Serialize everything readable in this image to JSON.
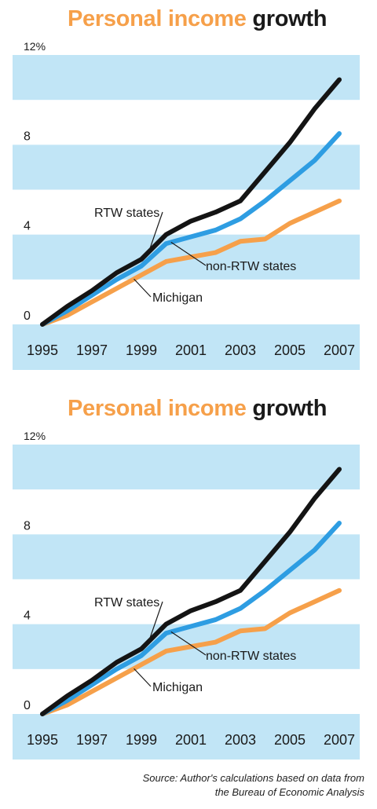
{
  "title_part1": "Personal income",
  "title_part2": "growth",
  "colors": {
    "band": "#c1e5f6",
    "rtw": "#141414",
    "non_rtw": "#2e9de2",
    "michigan": "#f6a04a"
  },
  "source": {
    "line1": "Source: Author's calculations based on data from",
    "line2": "the Bureau of Economic Analysis"
  },
  "chart_data": [
    {
      "type": "line",
      "title": "Personal income growth",
      "y_ticks": [
        "12%",
        "8",
        "4",
        "0"
      ],
      "y_tick_values": [
        12,
        8,
        4,
        0
      ],
      "x_tick_labels": [
        "1995",
        "1997",
        "1999",
        "2001",
        "2003",
        "2005",
        "2007"
      ],
      "x": [
        1995,
        1996,
        1997,
        1998,
        1999,
        2000,
        2001,
        2002,
        2003,
        2004,
        2005,
        2006,
        2007
      ],
      "ylim": [
        0,
        12
      ],
      "grid": "horizontal bands",
      "series": [
        {
          "name": "RTW states",
          "key": "rtw",
          "values": [
            0,
            0.8,
            1.5,
            2.3,
            2.9,
            4.0,
            4.6,
            5.0,
            5.5,
            6.8,
            8.1,
            9.6,
            10.9
          ]
        },
        {
          "name": "non-RTW states",
          "key": "non_rtw",
          "values": [
            0,
            0.6,
            1.3,
            2.0,
            2.6,
            3.6,
            3.9,
            4.2,
            4.7,
            5.5,
            6.4,
            7.3,
            8.5
          ]
        },
        {
          "name": "Michigan",
          "key": "michigan",
          "values": [
            0,
            0.4,
            1.0,
            1.6,
            2.2,
            2.8,
            3.0,
            3.2,
            3.7,
            3.8,
            4.5,
            5.0,
            5.5
          ]
        }
      ]
    },
    {
      "type": "line",
      "title": "Personal income growth",
      "y_ticks": [
        "12%",
        "8",
        "4",
        "0"
      ],
      "y_tick_values": [
        12,
        8,
        4,
        0
      ],
      "x_tick_labels": [
        "1995",
        "1997",
        "1999",
        "2001",
        "2003",
        "2005",
        "2007"
      ],
      "x": [
        1995,
        1996,
        1997,
        1998,
        1999,
        2000,
        2001,
        2002,
        2003,
        2004,
        2005,
        2006,
        2007
      ],
      "ylim": [
        0,
        12
      ],
      "grid": "horizontal bands",
      "series": [
        {
          "name": "RTW states",
          "key": "rtw",
          "values": [
            0,
            0.8,
            1.5,
            2.3,
            2.9,
            4.0,
            4.6,
            5.0,
            5.5,
            6.8,
            8.1,
            9.6,
            10.9
          ]
        },
        {
          "name": "non-RTW states",
          "key": "non_rtw",
          "values": [
            0,
            0.6,
            1.3,
            2.0,
            2.6,
            3.6,
            3.9,
            4.2,
            4.7,
            5.5,
            6.4,
            7.3,
            8.5
          ]
        },
        {
          "name": "Michigan",
          "key": "michigan",
          "values": [
            0,
            0.4,
            1.0,
            1.6,
            2.2,
            2.8,
            3.0,
            3.2,
            3.7,
            3.8,
            4.5,
            5.0,
            5.5
          ]
        }
      ]
    }
  ]
}
